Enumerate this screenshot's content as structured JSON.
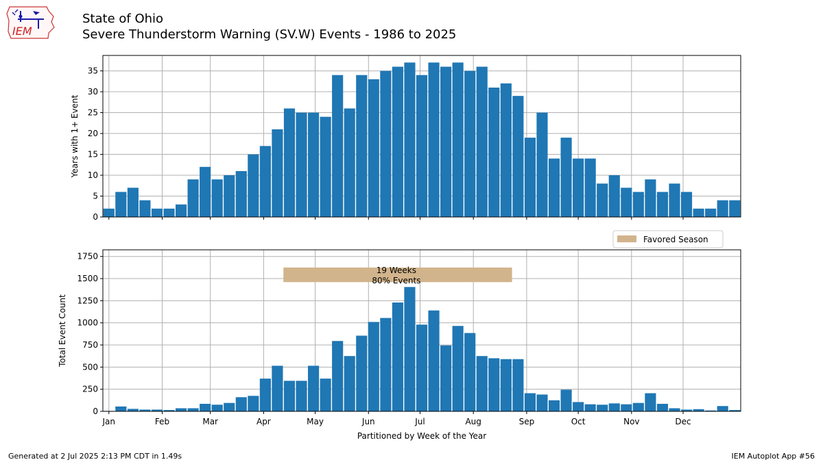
{
  "header": {
    "title_line1": "State of Ohio",
    "title_line2": "Severe Thunderstorm Warning (SV.W) Events - 1986 to 2025",
    "logo_text": "IEM"
  },
  "footer": {
    "generated": "Generated at 2 Jul 2025 2:13 PM CDT in 1.49s",
    "app": "IEM Autoplot App #56"
  },
  "colors": {
    "bar": "#1f77b4",
    "season": "#d2b48c",
    "grid": "#b0b0b0"
  },
  "chart_data": [
    {
      "type": "bar",
      "name": "years-with-event",
      "ylabel": "Years with 1+ Event",
      "xlabel": "",
      "ylim": [
        0,
        38.7
      ],
      "yticks": [
        0,
        5,
        10,
        15,
        20,
        25,
        30,
        35
      ],
      "grid": true,
      "x_categories": "week 1 to 53",
      "values": [
        2,
        6,
        7,
        4,
        2,
        2,
        3,
        9,
        12,
        9,
        10,
        11,
        15,
        17,
        21,
        26,
        25,
        25,
        24,
        34,
        26,
        34,
        33,
        35,
        36,
        37,
        34,
        37,
        36,
        37,
        35,
        36,
        31,
        32,
        29,
        19,
        25,
        14,
        19,
        14,
        14,
        8,
        10,
        7,
        6,
        9,
        6,
        8,
        6,
        2,
        2,
        4,
        4
      ]
    },
    {
      "type": "bar",
      "name": "total-event-count",
      "ylabel": "Total Event Count",
      "xlabel": "Partitioned by Week of the Year",
      "ylim": [
        0,
        1825
      ],
      "yticks": [
        0,
        250,
        500,
        750,
        1000,
        1250,
        1500,
        1750
      ],
      "grid": true,
      "x_categories": "week 1 to 53",
      "values": [
        5,
        55,
        28,
        20,
        20,
        15,
        35,
        35,
        85,
        75,
        95,
        160,
        175,
        370,
        515,
        345,
        345,
        515,
        370,
        795,
        625,
        855,
        1010,
        1055,
        1230,
        1405,
        980,
        1140,
        745,
        965,
        885,
        625,
        600,
        590,
        590,
        205,
        190,
        125,
        245,
        105,
        80,
        75,
        90,
        80,
        95,
        205,
        85,
        35,
        20,
        25,
        10,
        60,
        15
      ],
      "season": {
        "label_line1": "19 Weeks",
        "label_line2": "80% Events",
        "start_week": 16,
        "end_week": 34,
        "y_low": 1460,
        "y_high": 1625
      },
      "legend": {
        "label": "Favored Season",
        "position": "above-top-right"
      }
    }
  ],
  "x_axis": {
    "months": [
      "Jan",
      "Feb",
      "Mar",
      "Apr",
      "May",
      "Jun",
      "Jul",
      "Aug",
      "Sep",
      "Oct",
      "Nov",
      "Dec"
    ],
    "month_day_of_year": [
      1,
      32,
      60,
      91,
      121,
      152,
      182,
      213,
      244,
      274,
      305,
      335
    ]
  }
}
